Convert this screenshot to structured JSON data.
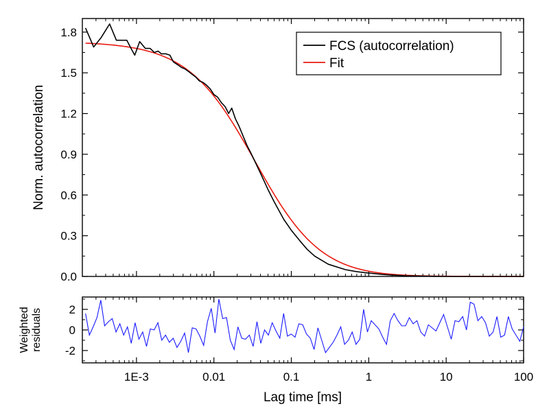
{
  "chart_data": [
    {
      "type": "line",
      "panel": "main",
      "x_scale": "log",
      "xlim": [
        0.0002,
        100
      ],
      "ylim": [
        0,
        1.9
      ],
      "xlabel": "",
      "ylabel": "Norm. autocorrelation",
      "yticks": [
        "0.0",
        "0.3",
        "0.6",
        "0.9",
        "1.2",
        "1.5",
        "1.8"
      ],
      "ytick_values": [
        0.0,
        0.3,
        0.6,
        0.9,
        1.2,
        1.5,
        1.8
      ],
      "legend_position": "top-right",
      "grid": false,
      "series": [
        {
          "name": "FCS (autocorrelation)",
          "color": "#000000",
          "x": [
            0.00022,
            0.00028,
            0.00035,
            0.00045,
            0.00055,
            0.00065,
            0.00075,
            0.00085,
            0.00095,
            0.0011,
            0.0013,
            0.0015,
            0.0017,
            0.0019,
            0.0021,
            0.0024,
            0.0027,
            0.003,
            0.0034,
            0.0038,
            0.0042,
            0.0047,
            0.0052,
            0.0058,
            0.0065,
            0.0072,
            0.008,
            0.009,
            0.01,
            0.0112,
            0.0125,
            0.014,
            0.0155,
            0.017,
            0.019,
            0.021,
            0.024,
            0.027,
            0.03,
            0.035,
            0.04,
            0.05,
            0.06,
            0.07,
            0.08,
            0.1,
            0.13,
            0.16,
            0.2,
            0.3,
            0.5,
            0.7,
            1,
            1.5,
            2,
            3,
            5,
            7,
            10,
            20,
            50,
            100
          ],
          "y": [
            1.83,
            1.69,
            1.76,
            1.86,
            1.74,
            1.74,
            1.74,
            1.68,
            1.63,
            1.73,
            1.68,
            1.68,
            1.65,
            1.66,
            1.64,
            1.64,
            1.63,
            1.58,
            1.56,
            1.54,
            1.53,
            1.51,
            1.49,
            1.47,
            1.44,
            1.43,
            1.41,
            1.38,
            1.34,
            1.32,
            1.28,
            1.25,
            1.2,
            1.24,
            1.16,
            1.11,
            1.03,
            0.96,
            0.91,
            0.83,
            0.76,
            0.64,
            0.55,
            0.48,
            0.42,
            0.34,
            0.26,
            0.2,
            0.15,
            0.09,
            0.05,
            0.035,
            0.025,
            0.015,
            0.01,
            0.005,
            0.002,
            0.001,
            0.0,
            0.0,
            0.0,
            0.0
          ]
        },
        {
          "name": "Fit",
          "color": "#e8190f",
          "model": "G(t)=1.73/((1+t/0.034)*sqrt(1+t/(25*0.034)))"
        }
      ],
      "legend": [
        {
          "label": "FCS (autocorrelation)",
          "color": "#000000"
        },
        {
          "label": "Fit",
          "color": "#e8190f"
        }
      ]
    },
    {
      "type": "line",
      "panel": "residuals",
      "x_scale": "log",
      "xlim": [
        0.0002,
        100
      ],
      "ylim": [
        -3.2,
        3.2
      ],
      "xlabel": "Lag time [ms]",
      "ylabel_lines": [
        "Weighted",
        "residuals"
      ],
      "yticks": [
        "-2",
        "0",
        "2"
      ],
      "ytick_values": [
        -2,
        0,
        2
      ],
      "xticks": [
        "1E-3",
        "0.01",
        "0.1",
        "1",
        "10",
        "100"
      ],
      "xtick_values": [
        0.001,
        0.01,
        0.1,
        1,
        10,
        100
      ],
      "grid": false,
      "series": [
        {
          "color": "#1a1aff",
          "values": [
            1.6,
            -0.5,
            0.3,
            1.2,
            2.9,
            0.4,
            0.8,
            1.1,
            -0.2,
            0.6,
            -0.5,
            0.3,
            -1.3,
            0.7,
            -0.9,
            -0.2,
            -1.6,
            0.1,
            0.0,
            0.7,
            -1.0,
            -0.5,
            -1.2,
            -0.8,
            -1.7,
            -1.1,
            -0.3,
            -2.2,
            0.2,
            0.1,
            -0.6,
            -1.5,
            0.8,
            2.1,
            -0.3,
            3.0,
            1.1,
            1.2,
            -1.0,
            -1.9,
            0.3,
            -0.8,
            -0.9,
            -0.5,
            -1.6,
            0.8,
            -1.3,
            0.0,
            -0.5,
            0.7,
            -0.1,
            -0.8,
            1.6,
            -0.6,
            -0.4,
            -0.7,
            0.6,
            0.5,
            -0.4,
            -0.8,
            -1.9,
            0.2,
            -1.0,
            -2.2,
            -1.7,
            -1.2,
            -0.5,
            0.3,
            -1.4,
            -1.0,
            -0.2,
            -1.4,
            -0.9,
            2.0,
            -0.2,
            0.9,
            0.5,
            0.1,
            -0.7,
            -1.4,
            0.9,
            1.6,
            0.9,
            0.4,
            0.4,
            1.2,
            0.6,
            0.9,
            -0.2,
            -0.6,
            0.5,
            0.2,
            -0.1,
            0.7,
            1.5,
            0.3,
            -0.9,
            0.9,
            0.8,
            1.3,
            0.0,
            2.7,
            2.5,
            0.9,
            1.3,
            0.7,
            -0.6,
            -0.2,
            1.3,
            -0.7,
            -0.5,
            1.3,
            0.1,
            -0.5,
            -1.1,
            0.3
          ]
        }
      ]
    }
  ]
}
